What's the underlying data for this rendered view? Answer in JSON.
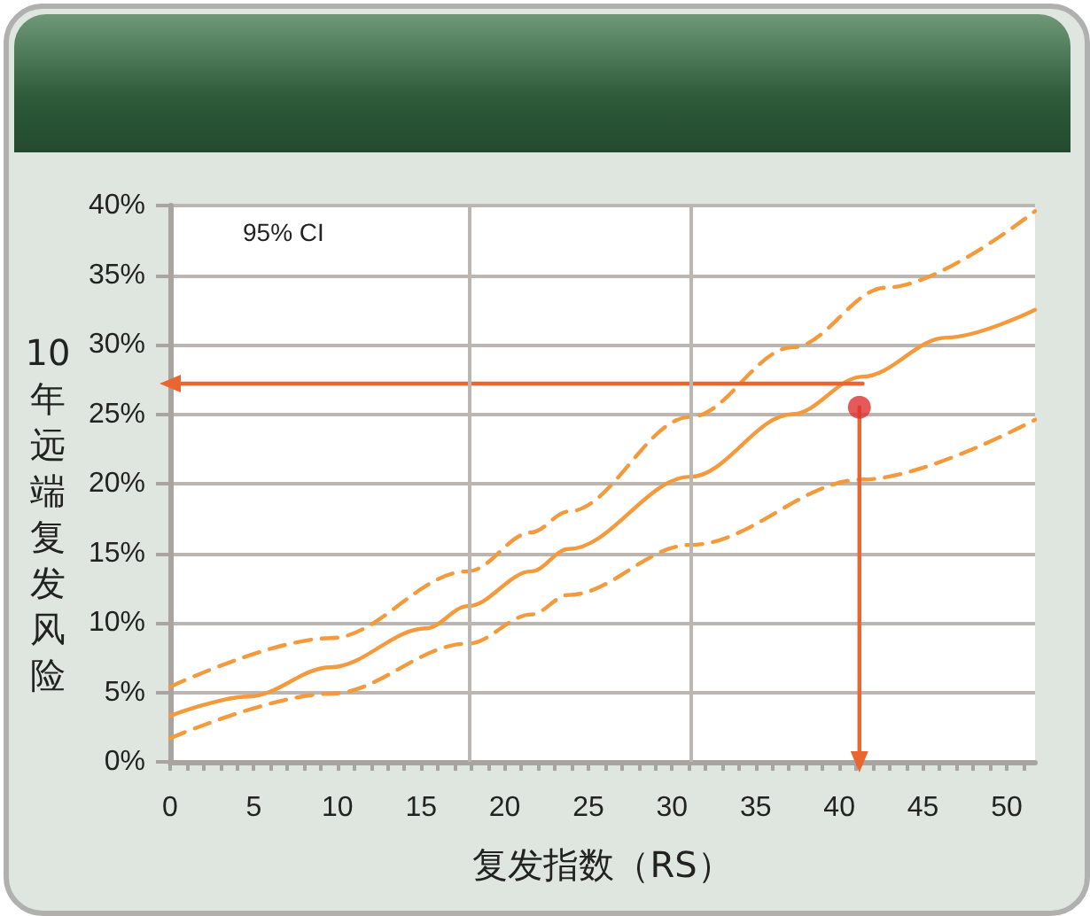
{
  "chart_data": {
    "type": "line",
    "xlabel": "复发指数（RS）",
    "ylabel": "10年远端复发风险",
    "annotations": [
      "95% CI"
    ],
    "series": [
      {
        "color": "#f39a3c",
        "line_style": "solid",
        "x": [
          0,
          4.7,
          9.6,
          15.3,
          17.8,
          21.6,
          23.8,
          31.1,
          37.2,
          41.4,
          46.4,
          51.7
        ],
        "values": [
          3.3,
          4.7,
          6.8,
          9.6,
          11.2,
          13.7,
          15.3,
          20.5,
          25.0,
          27.7,
          30.5,
          32.5
        ]
      },
      {
        "color": "#f39a3c",
        "line_style": "dashed",
        "x": [
          0,
          9.6,
          17.8,
          21.6,
          23.8,
          31.1,
          37.2,
          42.8,
          51.7
        ],
        "values": [
          5.4,
          8.9,
          13.7,
          16.5,
          18.0,
          24.8,
          29.8,
          34.1,
          39.6
        ]
      },
      {
        "color": "#f39a3c",
        "line_style": "dashed",
        "x": [
          0,
          9.6,
          17.8,
          21.6,
          23.8,
          31.1,
          41.4,
          51.7
        ],
        "values": [
          1.7,
          4.9,
          8.5,
          10.6,
          12.0,
          15.6,
          20.3,
          24.6
        ]
      },
      {
        "color": "#ea6530",
        "line_style": "solid",
        "marker": "triangle",
        "x": [
          41.4,
          0
        ],
        "values": [
          27.2,
          27.2
        ]
      },
      {
        "color": "#ea6530",
        "line_style": "solid",
        "marker": "triangle",
        "x": [
          41.2,
          41.2
        ],
        "values": [
          25.5,
          0
        ]
      },
      {
        "type": "scatter",
        "color": "#e03030",
        "marker": "circle",
        "x": [
          41.2
        ],
        "values": [
          25.5
        ]
      }
    ],
    "marker": "none",
    "grid": "y",
    "ref_lines": [
      {
        "axis": "x",
        "value": 17.9,
        "color": "#bcb6b2"
      },
      {
        "axis": "x",
        "value": 31.1,
        "color": "#bcb6b2"
      }
    ],
    "xlim": [
      0,
      51.7
    ],
    "xticks": [
      0,
      {
        "value": 1,
        "label": null
      },
      {
        "value": 2,
        "label": null
      },
      {
        "value": 3,
        "label": null
      },
      {
        "value": 4,
        "label": null
      },
      5,
      {
        "value": 6,
        "label": null
      },
      {
        "value": 7,
        "label": null
      },
      {
        "value": 8,
        "label": null
      },
      {
        "value": 9,
        "label": null
      },
      10,
      {
        "value": 11,
        "label": null
      },
      {
        "value": 12,
        "label": null
      },
      {
        "value": 13,
        "label": null
      },
      {
        "value": 14,
        "label": null
      },
      15,
      {
        "value": 16,
        "label": null
      },
      {
        "value": 17,
        "label": null
      },
      {
        "value": 18,
        "label": null
      },
      {
        "value": 19,
        "label": null
      },
      20,
      {
        "value": 21,
        "label": null
      },
      {
        "value": 22,
        "label": null
      },
      {
        "value": 23,
        "label": null
      },
      {
        "value": 24,
        "label": null
      },
      25,
      {
        "value": 26,
        "label": null
      },
      {
        "value": 27,
        "label": null
      },
      {
        "value": 28,
        "label": null
      },
      {
        "value": 29,
        "label": null
      },
      30,
      {
        "value": 31,
        "label": null
      },
      {
        "value": 32,
        "label": null
      },
      {
        "value": 33,
        "label": null
      },
      {
        "value": 34,
        "label": null
      },
      35,
      {
        "value": 36,
        "label": null
      },
      {
        "value": 37,
        "label": null
      },
      {
        "value": 38,
        "label": null
      },
      {
        "value": 39,
        "label": null
      },
      40,
      {
        "value": 41,
        "label": null
      },
      {
        "value": 42,
        "label": null
      },
      {
        "value": 43,
        "label": null
      },
      {
        "value": 44,
        "label": null
      },
      45,
      {
        "value": 46,
        "label": null
      },
      {
        "value": 47,
        "label": null
      },
      {
        "value": 48,
        "label": null
      },
      {
        "value": 49,
        "label": null
      },
      50,
      {
        "value": 51,
        "label": null
      }
    ],
    "ylim": [
      0,
      40
    ],
    "yticks": [
      {
        "value": 0,
        "label": "0%"
      },
      {
        "value": 5,
        "label": "5%"
      },
      {
        "value": 10,
        "label": "10%"
      },
      {
        "value": 15,
        "label": "15%"
      },
      {
        "value": 20,
        "label": "20%"
      },
      {
        "value": 25,
        "label": "25%"
      },
      {
        "value": 30,
        "label": "30%"
      },
      {
        "value": 35,
        "label": "35%"
      },
      {
        "value": 40,
        "label": "40%"
      }
    ]
  }
}
